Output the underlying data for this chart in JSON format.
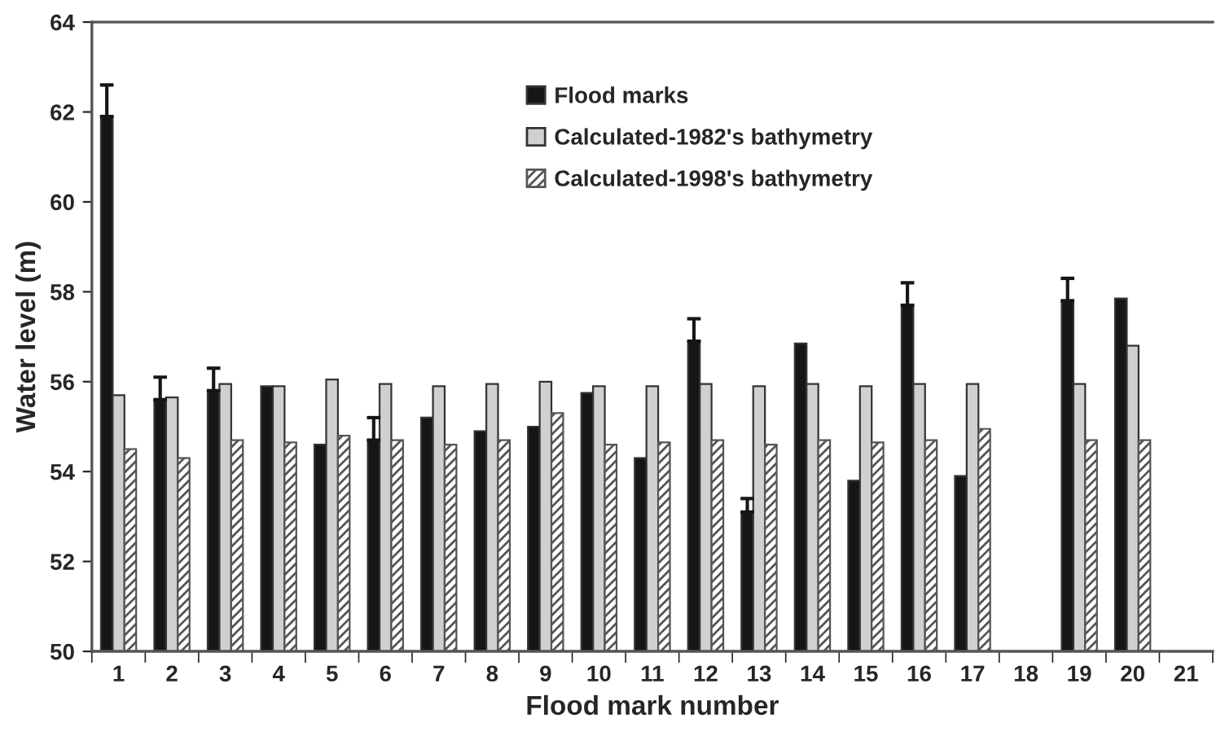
{
  "chart_data": {
    "type": "bar",
    "xlabel": "Flood mark number",
    "ylabel": "Water level (m)",
    "categories": [
      "1",
      "2",
      "3",
      "4",
      "5",
      "6",
      "7",
      "8",
      "9",
      "10",
      "11",
      "12",
      "13",
      "14",
      "15",
      "16",
      "17",
      "18",
      "19",
      "20",
      "21"
    ],
    "series": [
      {
        "name": "Flood marks",
        "color": "#161616",
        "values": [
          61.9,
          55.6,
          55.8,
          55.9,
          54.6,
          54.7,
          55.2,
          54.9,
          55.0,
          55.75,
          54.3,
          56.9,
          53.1,
          56.85,
          53.8,
          57.7,
          53.9,
          null,
          57.8,
          57.85,
          null
        ],
        "errors": [
          [
            61.9,
            62.6
          ],
          [
            55.6,
            56.1
          ],
          [
            55.8,
            56.3
          ],
          null,
          null,
          [
            54.7,
            55.2
          ],
          null,
          null,
          null,
          null,
          null,
          [
            56.9,
            57.4
          ],
          [
            53.1,
            53.4
          ],
          null,
          null,
          [
            57.7,
            58.2
          ],
          null,
          null,
          [
            57.8,
            58.3
          ],
          null,
          null
        ]
      },
      {
        "name": "Calculated-1982's bathymetry",
        "color": "#d0d0d0",
        "values": [
          55.7,
          55.65,
          55.95,
          55.9,
          56.05,
          55.95,
          55.9,
          55.95,
          56.0,
          55.9,
          55.9,
          55.95,
          55.9,
          55.95,
          55.9,
          55.95,
          55.95,
          null,
          55.95,
          56.8,
          null
        ]
      },
      {
        "name": "Calculated-1998's bathymetry",
        "color": "#555555",
        "values": [
          54.5,
          54.3,
          54.7,
          54.65,
          54.8,
          54.7,
          54.6,
          54.7,
          55.3,
          54.6,
          54.65,
          54.7,
          54.6,
          54.7,
          54.65,
          54.7,
          54.95,
          null,
          54.7,
          54.7,
          null
        ]
      }
    ],
    "ylim": [
      50,
      64
    ],
    "yticks": [
      50,
      52,
      54,
      56,
      58,
      60,
      62,
      64
    ],
    "grid": false,
    "legend": "top"
  }
}
